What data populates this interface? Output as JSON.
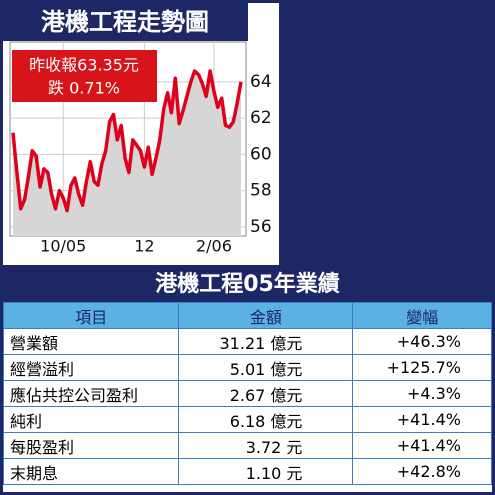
{
  "chart_data": {
    "type": "line",
    "title": "港機工程走勢圖",
    "annotation": [
      "昨收報63.35元",
      "跌 0.71%"
    ],
    "categories": [
      null,
      null,
      null,
      null,
      null,
      null,
      null,
      null,
      null,
      null,
      null,
      null,
      null,
      "10/05",
      null,
      null,
      null,
      null,
      null,
      null,
      null,
      null,
      null,
      null,
      null,
      null,
      null,
      null,
      null,
      null,
      null,
      null,
      null,
      null,
      "12",
      null,
      null,
      null,
      null,
      null,
      null,
      null,
      null,
      null,
      null,
      null,
      null,
      null,
      null,
      null,
      null,
      null,
      "2/06",
      null,
      null,
      null,
      null,
      null,
      null,
      null
    ],
    "series": [
      {
        "color": "#e0001b",
        "values": [
          61.2,
          59.0,
          57.0,
          57.5,
          58.8,
          60.2,
          59.9,
          58.2,
          59.2,
          59.0,
          57.8,
          57.0,
          58.0,
          57.6,
          56.9,
          58.3,
          58.7,
          57.8,
          57.2,
          58.5,
          59.6,
          58.5,
          58.3,
          59.5,
          60.2,
          61.8,
          62.2,
          60.8,
          61.6,
          59.8,
          59.0,
          60.8,
          60.5,
          60.2,
          59.3,
          60.4,
          58.9,
          59.8,
          60.8,
          62.5,
          63.4,
          62.3,
          64.2,
          61.7,
          62.4,
          63.2,
          64.0,
          64.6,
          64.4,
          63.9,
          63.2,
          64.6,
          63.5,
          62.6,
          63.1,
          61.6,
          61.5,
          61.8,
          62.8,
          64.0
        ]
      }
    ],
    "ylim": [
      55.5,
      66.2
    ],
    "yticks": [
      56,
      58,
      60,
      62,
      64
    ],
    "grid": true
  },
  "table": {
    "title": "港機工程05年業績",
    "header": [
      "項目",
      "金額",
      "變幅"
    ],
    "rows": [
      [
        "營業額",
        "31.21 億元",
        "+46.3%"
      ],
      [
        "經營溢利",
        "5.01 億元",
        "+125.7%"
      ],
      [
        "應佔共控公司盈利",
        "2.67 億元",
        "+4.3%"
      ],
      [
        "純利",
        "6.18 億元",
        "+41.4%"
      ],
      [
        "每股盈利",
        "3.72 元",
        "+41.4%"
      ],
      [
        "末期息",
        "1.10 元",
        "+42.8%"
      ]
    ]
  }
}
